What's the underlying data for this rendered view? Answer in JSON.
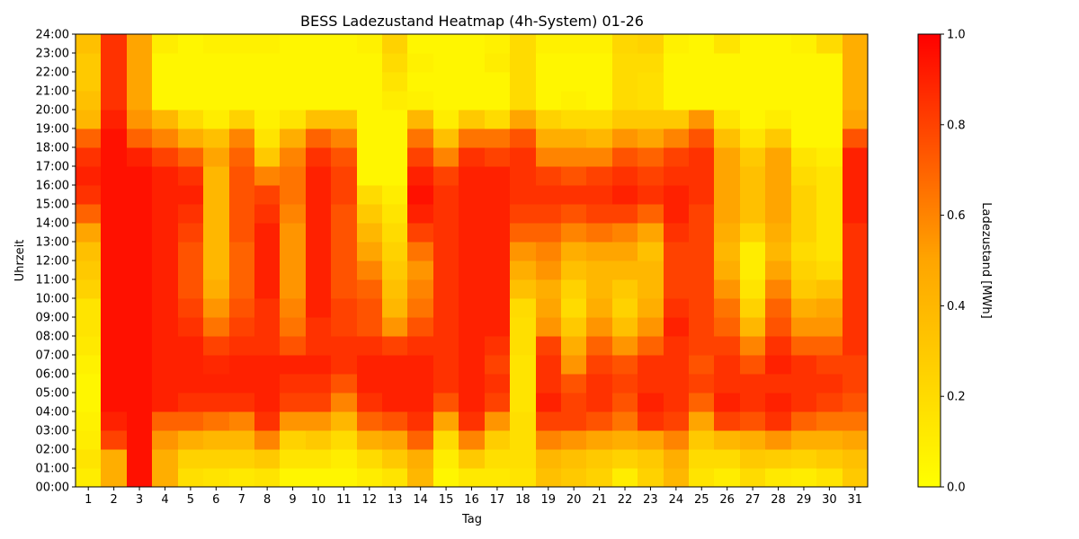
{
  "chart_data": {
    "type": "heatmap",
    "title": "BESS Ladezustand Heatmap (4h-System) 01-26",
    "xlabel": "Tag",
    "ylabel": "Uhrzeit",
    "x": [
      1,
      2,
      3,
      4,
      5,
      6,
      7,
      8,
      9,
      10,
      11,
      12,
      13,
      14,
      15,
      16,
      17,
      18,
      19,
      20,
      21,
      22,
      23,
      24,
      25,
      26,
      27,
      28,
      29,
      30,
      31
    ],
    "y": [
      "00:00",
      "01:00",
      "02:00",
      "03:00",
      "04:00",
      "05:00",
      "06:00",
      "07:00",
      "08:00",
      "09:00",
      "10:00",
      "11:00",
      "12:00",
      "13:00",
      "14:00",
      "15:00",
      "16:00",
      "17:00",
      "18:00",
      "19:00",
      "20:00",
      "21:00",
      "22:00",
      "23:00",
      "24:00"
    ],
    "values": [
      [
        0.1,
        0.45,
        0.95,
        0.45,
        0.18,
        0.15,
        0.12,
        0.15,
        0.05,
        0.05,
        0.05,
        0.1,
        0.15,
        0.4,
        0.05,
        0.12,
        0.12,
        0.15,
        0.35,
        0.3,
        0.25,
        0.1,
        0.25,
        0.4,
        0.15,
        0.1,
        0.2,
        0.12,
        0.1,
        0.15,
        0.3
      ],
      [
        0.15,
        0.45,
        0.95,
        0.45,
        0.25,
        0.25,
        0.25,
        0.3,
        0.15,
        0.15,
        0.1,
        0.2,
        0.3,
        0.45,
        0.1,
        0.3,
        0.18,
        0.18,
        0.4,
        0.35,
        0.3,
        0.25,
        0.3,
        0.45,
        0.2,
        0.2,
        0.3,
        0.28,
        0.25,
        0.3,
        0.35
      ],
      [
        0.1,
        0.8,
        0.95,
        0.55,
        0.45,
        0.4,
        0.4,
        0.6,
        0.25,
        0.3,
        0.2,
        0.45,
        0.5,
        0.7,
        0.2,
        0.6,
        0.28,
        0.18,
        0.6,
        0.55,
        0.5,
        0.45,
        0.5,
        0.6,
        0.3,
        0.4,
        0.45,
        0.55,
        0.45,
        0.45,
        0.5
      ],
      [
        0.08,
        0.9,
        0.95,
        0.7,
        0.7,
        0.65,
        0.6,
        0.85,
        0.55,
        0.55,
        0.4,
        0.7,
        0.75,
        0.85,
        0.5,
        0.85,
        0.55,
        0.18,
        0.8,
        0.8,
        0.75,
        0.65,
        0.85,
        0.8,
        0.5,
        0.8,
        0.75,
        0.85,
        0.7,
        0.65,
        0.65
      ],
      [
        0.05,
        0.95,
        0.95,
        0.9,
        0.85,
        0.85,
        0.85,
        0.9,
        0.8,
        0.8,
        0.6,
        0.85,
        0.9,
        0.9,
        0.75,
        0.9,
        0.8,
        0.15,
        0.9,
        0.8,
        0.85,
        0.75,
        0.9,
        0.85,
        0.7,
        0.9,
        0.85,
        0.9,
        0.85,
        0.8,
        0.75
      ],
      [
        0.05,
        0.95,
        0.95,
        0.9,
        0.9,
        0.9,
        0.9,
        0.9,
        0.85,
        0.85,
        0.75,
        0.9,
        0.9,
        0.9,
        0.85,
        0.9,
        0.85,
        0.15,
        0.85,
        0.75,
        0.85,
        0.8,
        0.85,
        0.85,
        0.8,
        0.85,
        0.85,
        0.85,
        0.85,
        0.85,
        0.8
      ],
      [
        0.08,
        0.95,
        0.95,
        0.9,
        0.9,
        0.88,
        0.9,
        0.9,
        0.9,
        0.9,
        0.85,
        0.9,
        0.9,
        0.9,
        0.85,
        0.9,
        0.8,
        0.15,
        0.85,
        0.55,
        0.8,
        0.75,
        0.85,
        0.85,
        0.75,
        0.85,
        0.75,
        0.9,
        0.85,
        0.8,
        0.8
      ],
      [
        0.12,
        0.95,
        0.95,
        0.9,
        0.9,
        0.8,
        0.85,
        0.85,
        0.75,
        0.85,
        0.85,
        0.85,
        0.8,
        0.85,
        0.85,
        0.9,
        0.85,
        0.18,
        0.8,
        0.45,
        0.7,
        0.55,
        0.7,
        0.85,
        0.8,
        0.8,
        0.6,
        0.85,
        0.7,
        0.7,
        0.85
      ],
      [
        0.15,
        0.95,
        0.95,
        0.9,
        0.85,
        0.65,
        0.8,
        0.85,
        0.65,
        0.85,
        0.8,
        0.75,
        0.55,
        0.75,
        0.85,
        0.9,
        0.9,
        0.18,
        0.55,
        0.3,
        0.55,
        0.35,
        0.55,
        0.9,
        0.8,
        0.7,
        0.4,
        0.75,
        0.55,
        0.55,
        0.85
      ],
      [
        0.15,
        0.95,
        0.95,
        0.9,
        0.8,
        0.55,
        0.75,
        0.85,
        0.6,
        0.9,
        0.8,
        0.75,
        0.4,
        0.65,
        0.85,
        0.9,
        0.9,
        0.2,
        0.5,
        0.2,
        0.45,
        0.25,
        0.45,
        0.85,
        0.8,
        0.65,
        0.25,
        0.7,
        0.45,
        0.5,
        0.85
      ],
      [
        0.25,
        0.95,
        0.95,
        0.9,
        0.75,
        0.45,
        0.7,
        0.9,
        0.55,
        0.9,
        0.75,
        0.7,
        0.35,
        0.6,
        0.85,
        0.9,
        0.9,
        0.35,
        0.45,
        0.25,
        0.4,
        0.3,
        0.4,
        0.8,
        0.8,
        0.55,
        0.15,
        0.6,
        0.3,
        0.35,
        0.85
      ],
      [
        0.3,
        0.95,
        0.95,
        0.9,
        0.75,
        0.4,
        0.7,
        0.9,
        0.55,
        0.9,
        0.75,
        0.6,
        0.3,
        0.55,
        0.85,
        0.9,
        0.9,
        0.45,
        0.55,
        0.35,
        0.4,
        0.4,
        0.4,
        0.8,
        0.8,
        0.45,
        0.1,
        0.5,
        0.25,
        0.2,
        0.85
      ],
      [
        0.35,
        0.95,
        0.95,
        0.9,
        0.75,
        0.4,
        0.7,
        0.9,
        0.55,
        0.9,
        0.75,
        0.5,
        0.25,
        0.65,
        0.85,
        0.9,
        0.9,
        0.55,
        0.6,
        0.45,
        0.5,
        0.5,
        0.35,
        0.8,
        0.8,
        0.4,
        0.1,
        0.4,
        0.2,
        0.15,
        0.85
      ],
      [
        0.5,
        0.95,
        0.95,
        0.9,
        0.8,
        0.4,
        0.75,
        0.9,
        0.55,
        0.9,
        0.75,
        0.4,
        0.2,
        0.8,
        0.85,
        0.9,
        0.9,
        0.7,
        0.7,
        0.6,
        0.65,
        0.6,
        0.5,
        0.85,
        0.8,
        0.45,
        0.25,
        0.45,
        0.25,
        0.15,
        0.85
      ],
      [
        0.7,
        0.95,
        0.95,
        0.9,
        0.85,
        0.4,
        0.75,
        0.85,
        0.6,
        0.9,
        0.75,
        0.3,
        0.15,
        0.9,
        0.85,
        0.9,
        0.9,
        0.8,
        0.8,
        0.75,
        0.8,
        0.8,
        0.7,
        0.9,
        0.8,
        0.5,
        0.35,
        0.5,
        0.25,
        0.15,
        0.9
      ],
      [
        0.85,
        0.95,
        0.95,
        0.9,
        0.9,
        0.4,
        0.75,
        0.8,
        0.65,
        0.9,
        0.8,
        0.2,
        0.1,
        0.95,
        0.85,
        0.9,
        0.9,
        0.85,
        0.85,
        0.85,
        0.85,
        0.9,
        0.85,
        0.9,
        0.85,
        0.5,
        0.35,
        0.5,
        0.25,
        0.15,
        0.9
      ],
      [
        0.9,
        0.95,
        0.95,
        0.9,
        0.85,
        0.4,
        0.75,
        0.6,
        0.65,
        0.9,
        0.8,
        0.05,
        0.05,
        0.9,
        0.8,
        0.9,
        0.9,
        0.85,
        0.8,
        0.75,
        0.8,
        0.85,
        0.8,
        0.85,
        0.85,
        0.5,
        0.35,
        0.5,
        0.2,
        0.15,
        0.9
      ],
      [
        0.85,
        0.95,
        0.9,
        0.8,
        0.7,
        0.5,
        0.7,
        0.3,
        0.6,
        0.85,
        0.75,
        0.05,
        0.05,
        0.8,
        0.6,
        0.85,
        0.8,
        0.85,
        0.6,
        0.6,
        0.6,
        0.75,
        0.7,
        0.8,
        0.85,
        0.5,
        0.3,
        0.5,
        0.15,
        0.1,
        0.9
      ],
      [
        0.7,
        0.95,
        0.7,
        0.6,
        0.45,
        0.35,
        0.6,
        0.15,
        0.45,
        0.7,
        0.6,
        0.05,
        0.05,
        0.65,
        0.35,
        0.65,
        0.65,
        0.75,
        0.45,
        0.45,
        0.4,
        0.55,
        0.5,
        0.6,
        0.75,
        0.35,
        0.15,
        0.3,
        0.05,
        0.05,
        0.75
      ],
      [
        0.4,
        0.9,
        0.55,
        0.4,
        0.2,
        0.1,
        0.25,
        0.08,
        0.15,
        0.35,
        0.35,
        0.05,
        0.05,
        0.4,
        0.1,
        0.3,
        0.2,
        0.5,
        0.25,
        0.2,
        0.2,
        0.3,
        0.3,
        0.3,
        0.55,
        0.15,
        0.05,
        0.1,
        0.05,
        0.05,
        0.5
      ],
      [
        0.35,
        0.85,
        0.5,
        0.05,
        0.05,
        0.05,
        0.05,
        0.05,
        0.05,
        0.05,
        0.05,
        0.05,
        0.1,
        0.08,
        0.05,
        0.05,
        0.05,
        0.2,
        0.05,
        0.08,
        0.05,
        0.2,
        0.18,
        0.05,
        0.05,
        0.05,
        0.05,
        0.05,
        0.05,
        0.05,
        0.45
      ],
      [
        0.3,
        0.85,
        0.5,
        0.05,
        0.05,
        0.05,
        0.05,
        0.05,
        0.05,
        0.05,
        0.05,
        0.05,
        0.15,
        0.05,
        0.05,
        0.05,
        0.05,
        0.2,
        0.05,
        0.05,
        0.05,
        0.2,
        0.18,
        0.05,
        0.05,
        0.05,
        0.05,
        0.05,
        0.05,
        0.05,
        0.45
      ],
      [
        0.3,
        0.85,
        0.5,
        0.05,
        0.05,
        0.05,
        0.05,
        0.05,
        0.05,
        0.05,
        0.05,
        0.05,
        0.2,
        0.08,
        0.05,
        0.05,
        0.1,
        0.2,
        0.05,
        0.05,
        0.05,
        0.2,
        0.2,
        0.05,
        0.05,
        0.05,
        0.05,
        0.05,
        0.05,
        0.05,
        0.45
      ],
      [
        0.35,
        0.85,
        0.5,
        0.1,
        0.05,
        0.08,
        0.08,
        0.08,
        0.05,
        0.05,
        0.05,
        0.08,
        0.25,
        0.05,
        0.05,
        0.05,
        0.08,
        0.2,
        0.08,
        0.08,
        0.08,
        0.22,
        0.25,
        0.08,
        0.05,
        0.15,
        0.05,
        0.05,
        0.08,
        0.2,
        0.45
      ]
    ],
    "colorbar": {
      "label": "Ladezustand [MWh]",
      "min": 0.0,
      "max": 1.0,
      "ticks": [
        "0.0",
        "0.2",
        "0.4",
        "0.6",
        "0.8",
        "1.0"
      ],
      "colors": [
        "#ffff00",
        "#ffa500",
        "#ff0000"
      ]
    },
    "grid": false
  }
}
